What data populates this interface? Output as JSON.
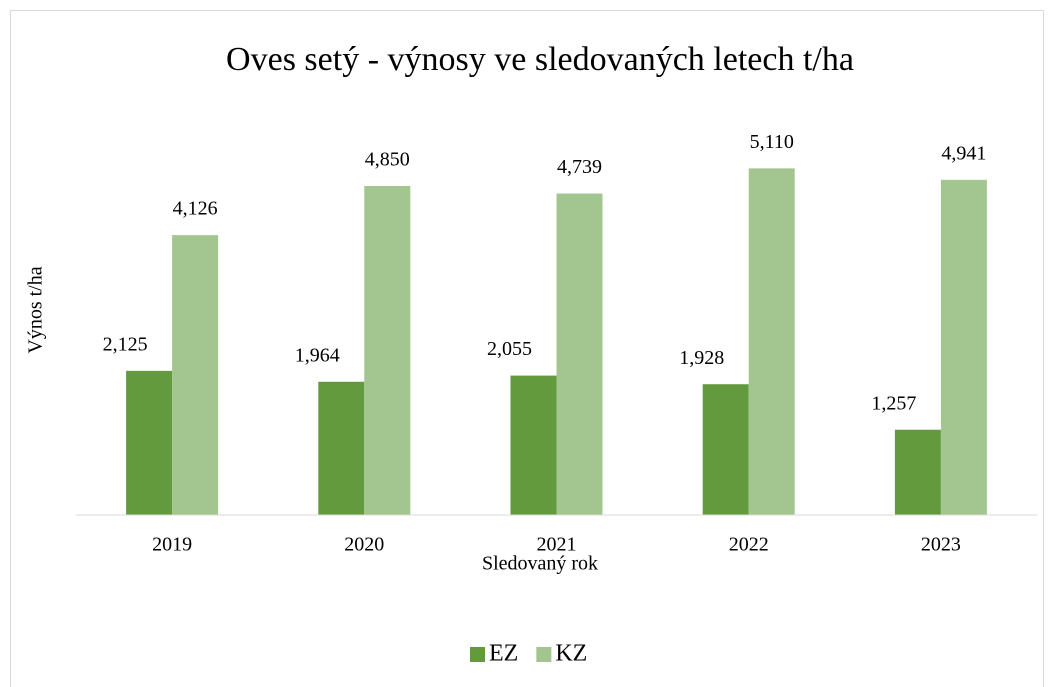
{
  "chart_data": {
    "type": "bar",
    "title": "Oves setý - výnosy ve sledovaných letech t/ha",
    "xlabel": "Sledovaný rok",
    "ylabel": "Výnos t/ha",
    "categories": [
      "2019",
      "2020",
      "2021",
      "2022",
      "2023"
    ],
    "series": [
      {
        "name": "EZ",
        "color": "#629a3d",
        "values": [
          2.125,
          1.964,
          2.055,
          1.928,
          1.257
        ],
        "value_labels": [
          "2,125",
          "1,964",
          "2,055",
          "1,928",
          "1,257"
        ]
      },
      {
        "name": "KZ",
        "color": "#a3c58f",
        "values": [
          4.126,
          4.85,
          4.739,
          5.11,
          4.941
        ],
        "value_labels": [
          "4,126",
          "4,850",
          "4,739",
          "5,110",
          "4,941"
        ]
      }
    ],
    "ylim": [
      0,
      6
    ],
    "legend": "bottom"
  }
}
